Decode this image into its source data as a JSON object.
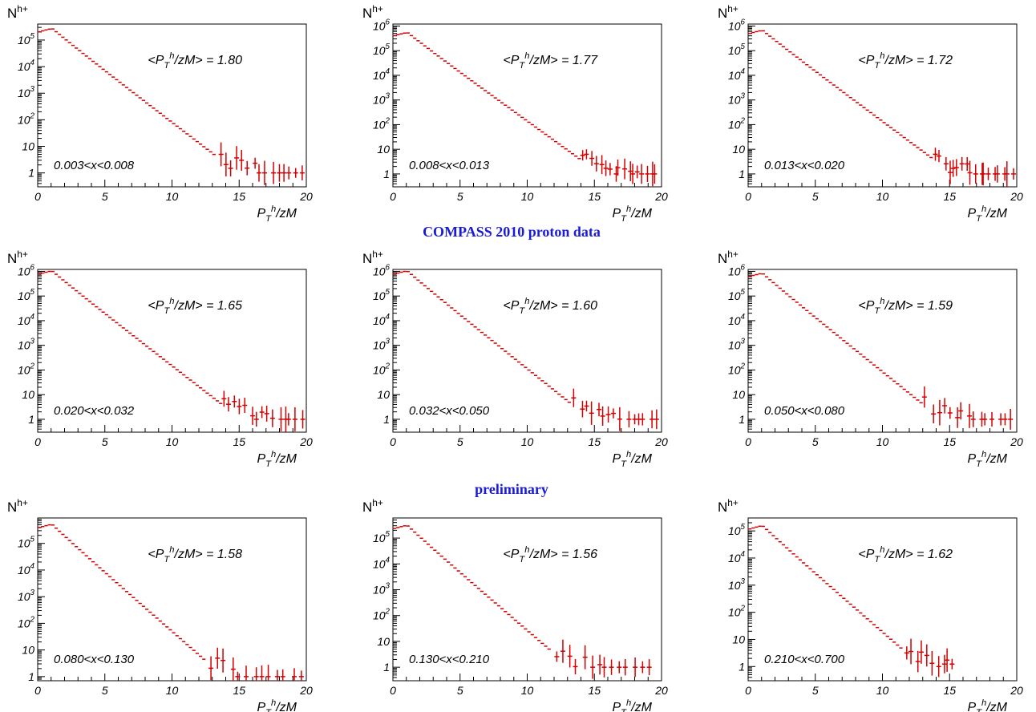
{
  "figure": {
    "title": "COMPASS 2010 proton data",
    "subtitle": "preliminary",
    "accent_color": "#1a1adb",
    "data_color": "#d40000"
  },
  "chart_data": [
    {
      "type": "scatter",
      "panel_label": "0.003<x<0.008",
      "mean_label": "<P_T^h/zM> = 1.80",
      "ylabel": "N^{h+}",
      "xlabel": "P_T^h/zM",
      "xlim": [
        0,
        20
      ],
      "ylim": [
        0.3,
        400000
      ],
      "y_scale": "log",
      "y_ticks": [
        "1",
        "10",
        "10^2",
        "10^3",
        "10^4",
        "10^5"
      ],
      "x_ticks": [
        "0",
        "5",
        "10",
        "15",
        "20"
      ],
      "peak": 260000,
      "tail_count": 15,
      "max_x": 19.8
    },
    {
      "type": "scatter",
      "panel_label": "0.008<x<0.013",
      "mean_label": "<P_T^h/zM> = 1.77",
      "ylabel": "N^{h+}",
      "xlabel": "P_T^h/zM",
      "xlim": [
        0,
        20
      ],
      "ylim": [
        0.3,
        1200000
      ],
      "y_scale": "log",
      "y_ticks": [
        "1",
        "10",
        "10^2",
        "10^3",
        "10^4",
        "10^5",
        "10^6"
      ],
      "x_ticks": [
        "0",
        "5",
        "10",
        "15",
        "20"
      ],
      "peak": 520000,
      "tail_count": 17,
      "max_x": 19.8
    },
    {
      "type": "scatter",
      "panel_label": "0.013<x<0.020",
      "mean_label": "<P_T^h/zM> = 1.72",
      "ylabel": "N^{h+}",
      "xlabel": "P_T^h/zM",
      "xlim": [
        0,
        20
      ],
      "ylim": [
        0.3,
        1200000
      ],
      "y_scale": "log",
      "y_ticks": [
        "1",
        "10",
        "10^2",
        "10^3",
        "10^4",
        "10^5",
        "10^6"
      ],
      "x_ticks": [
        "0",
        "5",
        "10",
        "15",
        "20"
      ],
      "peak": 640000,
      "tail_count": 18,
      "max_x": 19.8
    },
    {
      "type": "scatter",
      "panel_label": "0.020<x<0.032",
      "mean_label": "<P_T^h/zM> = 1.65",
      "ylabel": "N^{h+}",
      "xlabel": "P_T^h/zM",
      "xlim": [
        0,
        20
      ],
      "ylim": [
        0.3,
        1200000
      ],
      "y_scale": "log",
      "y_ticks": [
        "1",
        "10",
        "10^2",
        "10^3",
        "10^4",
        "10^5",
        "10^6"
      ],
      "x_ticks": [
        "0",
        "5",
        "10",
        "15",
        "20"
      ],
      "peak": 1000000,
      "tail_count": 15,
      "max_x": 19.8
    },
    {
      "type": "scatter",
      "panel_label": "0.032<x<0.050",
      "mean_label": "<P_T^h/zM> = 1.60",
      "ylabel": "N^{h+}",
      "xlabel": "P_T^h/zM",
      "xlim": [
        0,
        20
      ],
      "ylim": [
        0.3,
        1200000
      ],
      "y_scale": "log",
      "y_ticks": [
        "1",
        "10",
        "10^2",
        "10^3",
        "10^4",
        "10^5",
        "10^6"
      ],
      "x_ticks": [
        "0",
        "5",
        "10",
        "15",
        "20"
      ],
      "peak": 1000000,
      "tail_count": 15,
      "max_x": 19.8
    },
    {
      "type": "scatter",
      "panel_label": "0.050<x<0.080",
      "mean_label": "<P_T^h/zM> = 1.59",
      "ylabel": "N^{h+}",
      "xlabel": "P_T^h/zM",
      "xlim": [
        0,
        20
      ],
      "ylim": [
        0.3,
        1200000
      ],
      "y_scale": "log",
      "y_ticks": [
        "1",
        "10",
        "10^2",
        "10^3",
        "10^4",
        "10^5",
        "10^6"
      ],
      "x_ticks": [
        "0",
        "5",
        "10",
        "15",
        "20"
      ],
      "peak": 800000,
      "tail_count": 15,
      "max_x": 19.8
    },
    {
      "type": "scatter",
      "panel_label": "0.080<x<0.130",
      "mean_label": "<P_T^h/zM> = 1.58",
      "ylabel": "N^{h+}",
      "xlabel": "P_T^h/zM",
      "xlim": [
        0,
        20
      ],
      "ylim": [
        0.7,
        900000
      ],
      "y_scale": "log",
      "y_ticks": [
        "1",
        "10",
        "10^2",
        "10^3",
        "10^4",
        "10^5"
      ],
      "x_ticks": [
        "0",
        "5",
        "10",
        "15",
        "20"
      ],
      "peak": 500000,
      "tail_count": 13,
      "max_x": 19.8
    },
    {
      "type": "scatter",
      "panel_label": "0.130<x<0.210",
      "mean_label": "<P_T^h/zM> = 1.56",
      "ylabel": "N^{h+}",
      "xlabel": "P_T^h/zM",
      "xlim": [
        0,
        20
      ],
      "ylim": [
        0.3,
        600000
      ],
      "y_scale": "log",
      "y_ticks": [
        "1",
        "10",
        "10^2",
        "10^3",
        "10^4",
        "10^5"
      ],
      "x_ticks": [
        "0",
        "5",
        "10",
        "15",
        "20"
      ],
      "peak": 300000,
      "tail_count": 14,
      "max_x": 19.3
    },
    {
      "type": "scatter",
      "panel_label": "0.210<x<0.700",
      "mean_label": "<P_T^h/zM> = 1.62",
      "ylabel": "N^{h+}",
      "xlabel": "P_T^h/zM",
      "xlim": [
        0,
        20
      ],
      "ylim": [
        0.3,
        300000
      ],
      "y_scale": "log",
      "y_ticks": [
        "1",
        "10",
        "10^2",
        "10^3",
        "10^4",
        "10^5"
      ],
      "x_ticks": [
        "0",
        "5",
        "10",
        "15",
        "20"
      ],
      "peak": 150000,
      "tail_count": 10,
      "max_x": 15.5
    }
  ]
}
